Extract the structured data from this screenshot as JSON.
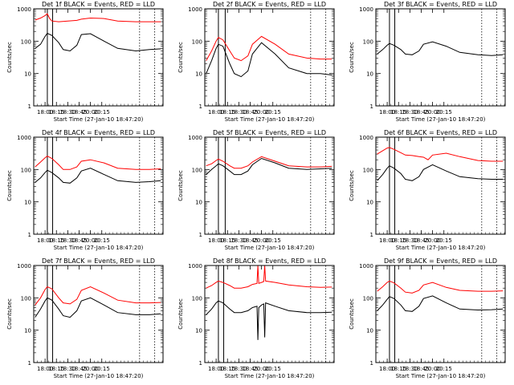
{
  "chart_data": [
    {
      "type": "line",
      "title": "Det 1f BLACK = Events, RED = LLD",
      "xlabel": "Start Time (27-Jan-10 18:47:20)",
      "ylabel": "Counts/sec",
      "xlim": [
        17.75,
        20.6
      ],
      "ylim": [
        1,
        1000
      ],
      "log_y": true,
      "x_ticks": [
        "18:00",
        "18:15",
        "18:30",
        "18:45",
        "20:00",
        "20:15"
      ],
      "y_ticks": [
        "1",
        "10",
        "100",
        "1000"
      ],
      "vlines_solid": [
        "18:03",
        "18:10"
      ],
      "vlines_dotted": [
        "20:05",
        "20:25"
      ],
      "series": [
        {
          "color": "#000000",
          "x": [
            17.78,
            17.9,
            18.0,
            18.05,
            18.15,
            18.3,
            18.4,
            18.55,
            18.7,
            18.8,
            19.0,
            19.3,
            19.6,
            20.0,
            20.3,
            20.55
          ],
          "values": [
            60,
            80,
            140,
            175,
            150,
            90,
            55,
            50,
            75,
            160,
            170,
            100,
            60,
            50,
            55,
            58
          ]
        },
        {
          "color": "#ff0000",
          "x": [
            17.78,
            17.9,
            18.0,
            18.05,
            18.1,
            18.15,
            18.3,
            18.5,
            18.7,
            18.8,
            19.0,
            19.3,
            19.6,
            20.0,
            20.3,
            20.55
          ],
          "values": [
            450,
            520,
            620,
            700,
            500,
            420,
            400,
            420,
            440,
            480,
            520,
            500,
            420,
            400,
            400,
            400
          ]
        }
      ]
    },
    {
      "type": "line",
      "title": "Det 2f BLACK = Events, RED = LLD",
      "xlabel": "Start Time (27-Jan-10 18:47:20)",
      "ylabel": "Counts/sec",
      "xlim": [
        17.75,
        20.6
      ],
      "ylim": [
        1,
        1000
      ],
      "log_y": true,
      "x_ticks": [
        "18:00",
        "18:15",
        "18:30",
        "18:45",
        "20:00",
        "20:15"
      ],
      "y_ticks": [
        "1",
        "10",
        "100",
        "1000"
      ],
      "vlines_solid": [
        "18:03",
        "18:12"
      ],
      "vlines_dotted": [
        "20:05",
        "20:25"
      ],
      "series": [
        {
          "color": "#000000",
          "x": [
            17.78,
            17.9,
            18.0,
            18.05,
            18.15,
            18.3,
            18.4,
            18.55,
            18.7,
            18.8,
            19.0,
            19.3,
            19.6,
            20.0,
            20.3,
            20.55
          ],
          "values": [
            10,
            25,
            60,
            80,
            70,
            20,
            10,
            8,
            12,
            40,
            90,
            40,
            15,
            10,
            10,
            9
          ]
        },
        {
          "color": "#ff0000",
          "x": [
            17.78,
            17.9,
            18.0,
            18.05,
            18.15,
            18.3,
            18.4,
            18.55,
            18.7,
            18.8,
            19.0,
            19.3,
            19.6,
            20.0,
            20.3,
            20.55
          ],
          "values": [
            25,
            50,
            100,
            130,
            110,
            50,
            30,
            25,
            35,
            80,
            140,
            80,
            40,
            30,
            28,
            28
          ]
        }
      ]
    },
    {
      "type": "line",
      "title": "Det 3f BLACK = Events, RED = LLD",
      "xlabel": "Start Time (27-Jan-10 18:47:20)",
      "ylabel": "Counts/sec",
      "xlim": [
        17.75,
        20.6
      ],
      "ylim": [
        1,
        1000
      ],
      "log_y": true,
      "x_ticks": [
        "18:00",
        "18:15",
        "18:30",
        "18:45",
        "20:00",
        "20:15"
      ],
      "y_ticks": [
        "1",
        "10",
        "100",
        "1000"
      ],
      "vlines_solid": [
        "18:03",
        "18:10"
      ],
      "vlines_dotted": [
        "20:05",
        "20:25"
      ],
      "series": [
        {
          "color": "#000000",
          "x": [
            17.78,
            17.9,
            18.0,
            18.05,
            18.15,
            18.3,
            18.4,
            18.55,
            18.7,
            18.8,
            19.0,
            19.3,
            19.6,
            20.0,
            20.3,
            20.55
          ],
          "values": [
            40,
            55,
            75,
            85,
            75,
            55,
            40,
            38,
            50,
            80,
            95,
            70,
            45,
            38,
            36,
            38
          ]
        }
      ]
    },
    {
      "type": "line",
      "title": "Det 4f BLACK = Events, RED = LLD",
      "xlabel": "Start Time (27-Jan-10 18:47:20)",
      "ylabel": "Counts/sec",
      "xlim": [
        17.75,
        20.6
      ],
      "ylim": [
        1,
        1000
      ],
      "log_y": true,
      "x_ticks": [
        "18:00",
        "18:15",
        "18:30",
        "18:45",
        "20:00",
        "20:15"
      ],
      "y_ticks": [
        "1",
        "10",
        "100",
        "1000"
      ],
      "vlines_solid": [
        "18:03",
        "18:10"
      ],
      "vlines_dotted": [
        "20:05",
        "20:25"
      ],
      "series": [
        {
          "color": "#000000",
          "x": [
            17.78,
            17.9,
            18.0,
            18.05,
            18.15,
            18.3,
            18.4,
            18.55,
            18.7,
            18.8,
            19.0,
            19.3,
            19.6,
            20.0,
            20.3,
            20.55
          ],
          "values": [
            40,
            55,
            80,
            95,
            80,
            55,
            40,
            38,
            55,
            90,
            110,
            70,
            45,
            40,
            42,
            45
          ]
        },
        {
          "color": "#ff0000",
          "x": [
            17.78,
            17.9,
            18.0,
            18.05,
            18.15,
            18.3,
            18.4,
            18.55,
            18.7,
            18.8,
            19.0,
            19.3,
            19.6,
            20.0,
            20.3,
            20.55
          ],
          "values": [
            120,
            170,
            230,
            260,
            220,
            140,
            100,
            100,
            120,
            180,
            200,
            160,
            110,
            100,
            100,
            105
          ]
        }
      ]
    },
    {
      "type": "line",
      "title": "Det 5f BLACK = Events, RED = LLD",
      "xlabel": "Start Time (27-Jan-10 18:47:20)",
      "ylabel": "Counts/sec",
      "xlim": [
        17.75,
        20.6
      ],
      "ylim": [
        1,
        1000
      ],
      "log_y": true,
      "x_ticks": [
        "18:00",
        "18:15",
        "18:30",
        "18:45",
        "20:00",
        "20:15"
      ],
      "y_ticks": [
        "1",
        "10",
        "100",
        "1000"
      ],
      "vlines_solid": [
        "18:03",
        "18:12"
      ],
      "vlines_dotted": [
        "20:05",
        "20:25"
      ],
      "series": [
        {
          "color": "#000000",
          "x": [
            17.78,
            17.9,
            18.0,
            18.05,
            18.15,
            18.3,
            18.4,
            18.55,
            18.7,
            18.8,
            19.0,
            19.3,
            19.6,
            20.0,
            20.3,
            20.55
          ],
          "values": [
            70,
            100,
            130,
            150,
            130,
            90,
            70,
            70,
            90,
            140,
            220,
            160,
            110,
            100,
            105,
            110
          ]
        },
        {
          "color": "#ff0000",
          "x": [
            17.78,
            17.9,
            18.0,
            18.05,
            18.15,
            18.3,
            18.4,
            18.55,
            18.7,
            18.8,
            19.0,
            19.3,
            19.6,
            20.0,
            20.3,
            20.55
          ],
          "values": [
            130,
            150,
            190,
            210,
            180,
            130,
            110,
            110,
            130,
            170,
            250,
            180,
            130,
            120,
            120,
            125
          ]
        }
      ]
    },
    {
      "type": "line",
      "title": "Det 6f BLACK = Events, RED = LLD",
      "xlabel": "Start Time (27-Jan-10 18:47:20)",
      "ylabel": "Counts/sec",
      "xlim": [
        17.75,
        20.6
      ],
      "ylim": [
        1,
        1000
      ],
      "log_y": true,
      "x_ticks": [
        "18:00",
        "18:15",
        "18:30",
        "18:45",
        "20:00",
        "20:15"
      ],
      "y_ticks": [
        "1",
        "10",
        "100",
        "1000"
      ],
      "vlines_solid": [
        "18:03",
        "18:10"
      ],
      "vlines_dotted": [
        "20:05",
        "20:25"
      ],
      "series": [
        {
          "color": "#000000",
          "x": [
            17.78,
            17.9,
            18.0,
            18.05,
            18.15,
            18.3,
            18.4,
            18.55,
            18.7,
            18.8,
            19.0,
            19.3,
            19.6,
            20.0,
            20.3,
            20.55
          ],
          "values": [
            45,
            70,
            110,
            130,
            110,
            75,
            50,
            45,
            60,
            100,
            140,
            90,
            60,
            52,
            50,
            50
          ]
        },
        {
          "color": "#ff0000",
          "x": [
            17.78,
            17.9,
            18.0,
            18.05,
            18.15,
            18.3,
            18.4,
            18.55,
            18.7,
            18.8,
            18.9,
            19.0,
            19.3,
            19.6,
            20.0,
            20.3,
            20.55
          ],
          "values": [
            300,
            380,
            460,
            480,
            420,
            330,
            280,
            270,
            250,
            240,
            200,
            280,
            320,
            250,
            190,
            180,
            180
          ]
        }
      ]
    },
    {
      "type": "line",
      "title": "Det 7f BLACK = Events, RED = LLD",
      "xlabel": "Start Time (27-Jan-10 18:47:20)",
      "ylabel": "Counts/sec",
      "xlim": [
        17.75,
        20.6
      ],
      "ylim": [
        1,
        1000
      ],
      "log_y": true,
      "x_ticks": [
        "18:00",
        "18:15",
        "18:30",
        "18:45",
        "20:00",
        "20:15"
      ],
      "y_ticks": [
        "1",
        "10",
        "100",
        "1000"
      ],
      "vlines_solid": [
        "18:03",
        "18:10"
      ],
      "vlines_dotted": [
        "20:05",
        "20:25"
      ],
      "series": [
        {
          "color": "#000000",
          "x": [
            17.78,
            17.9,
            18.0,
            18.05,
            18.15,
            18.3,
            18.4,
            18.55,
            18.7,
            18.8,
            19.0,
            19.3,
            19.6,
            20.0,
            20.3,
            20.55
          ],
          "values": [
            25,
            45,
            80,
            100,
            85,
            45,
            28,
            25,
            40,
            80,
            100,
            60,
            35,
            30,
            30,
            32
          ]
        },
        {
          "color": "#ff0000",
          "x": [
            17.78,
            17.9,
            18.0,
            18.05,
            18.15,
            18.3,
            18.4,
            18.55,
            18.7,
            18.8,
            19.0,
            19.3,
            19.6,
            20.0,
            20.3,
            20.55
          ],
          "values": [
            60,
            100,
            180,
            220,
            190,
            100,
            70,
            65,
            90,
            170,
            220,
            140,
            85,
            70,
            70,
            72
          ]
        }
      ]
    },
    {
      "type": "line",
      "title": "Det 8f BLACK = Events, RED = LLD",
      "xlabel": "Start Time (27-Jan-10 18:47:20)",
      "ylabel": "Counts/sec",
      "xlim": [
        17.75,
        20.6
      ],
      "ylim": [
        1,
        1000
      ],
      "log_y": true,
      "x_ticks": [
        "18:00",
        "18:15",
        "18:30",
        "18:45",
        "20:00",
        "20:15"
      ],
      "y_ticks": [
        "1",
        "10",
        "100",
        "1000"
      ],
      "vlines_solid": [
        "18:03",
        "18:10"
      ],
      "vlines_dotted": [
        "20:05",
        "20:25"
      ],
      "series": [
        {
          "color": "#000000",
          "x": [
            17.78,
            17.9,
            18.0,
            18.05,
            18.15,
            18.3,
            18.4,
            18.55,
            18.7,
            18.8,
            18.9,
            18.92,
            18.94,
            19.0,
            19.05,
            19.07,
            19.09,
            19.3,
            19.6,
            20.0,
            20.3,
            20.55
          ],
          "values": [
            30,
            45,
            70,
            80,
            70,
            45,
            35,
            35,
            40,
            50,
            55,
            5,
            50,
            60,
            65,
            6,
            70,
            55,
            40,
            35,
            35,
            36
          ]
        },
        {
          "color": "#ff0000",
          "x": [
            17.78,
            17.9,
            18.0,
            18.05,
            18.15,
            18.3,
            18.4,
            18.55,
            18.7,
            18.8,
            18.9,
            18.92,
            18.94,
            19.0,
            19.05,
            19.07,
            19.09,
            19.3,
            19.6,
            20.0,
            20.3,
            20.55
          ],
          "values": [
            200,
            240,
            300,
            330,
            300,
            240,
            200,
            200,
            220,
            260,
            280,
            1000,
            280,
            300,
            320,
            1000,
            330,
            300,
            250,
            220,
            210,
            215
          ]
        }
      ]
    },
    {
      "type": "line",
      "title": "Det 9f BLACK = Events, RED = LLD",
      "xlabel": "Start Time (27-Jan-10 18:47:20)",
      "ylabel": "Counts/sec",
      "xlim": [
        17.75,
        20.6
      ],
      "ylim": [
        1,
        1000
      ],
      "log_y": true,
      "x_ticks": [
        "18:00",
        "18:15",
        "18:30",
        "18:45",
        "20:00",
        "20:15"
      ],
      "y_ticks": [
        "1",
        "10",
        "100",
        "1000"
      ],
      "vlines_solid": [
        "18:03",
        "18:10"
      ],
      "vlines_dotted": [
        "20:05",
        "20:25"
      ],
      "series": [
        {
          "color": "#000000",
          "x": [
            17.78,
            17.9,
            18.0,
            18.05,
            18.15,
            18.3,
            18.4,
            18.55,
            18.7,
            18.8,
            19.0,
            19.3,
            19.6,
            20.0,
            20.3,
            20.55
          ],
          "values": [
            40,
            60,
            90,
            110,
            95,
            60,
            40,
            38,
            55,
            95,
            115,
            70,
            45,
            42,
            43,
            45
          ]
        },
        {
          "color": "#ff0000",
          "x": [
            17.78,
            17.9,
            18.0,
            18.05,
            18.15,
            18.3,
            18.4,
            18.55,
            18.7,
            18.8,
            19.0,
            19.3,
            19.6,
            20.0,
            20.3,
            20.55
          ],
          "values": [
            160,
            220,
            300,
            330,
            290,
            200,
            150,
            140,
            170,
            250,
            300,
            210,
            170,
            160,
            160,
            165
          ]
        }
      ]
    }
  ]
}
